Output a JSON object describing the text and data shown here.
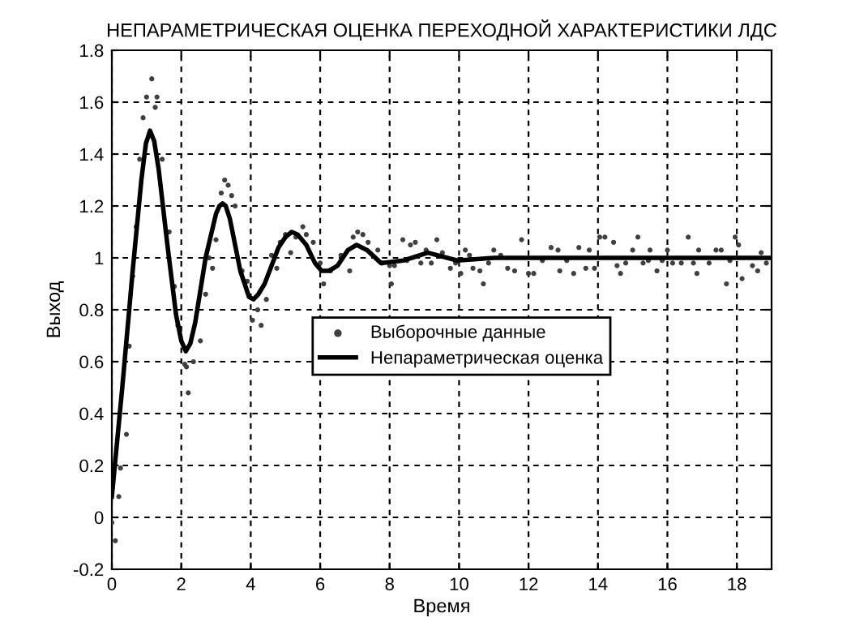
{
  "chart_data": {
    "type": "line",
    "title": "НЕПАРАМЕТРИЧЕСКАЯ ОЦЕНКА ПЕРЕХОДНОЙ ХАРАКТЕРИСТИКИ ЛДС",
    "xlabel": "Время",
    "ylabel": "Выход",
    "xlim": [
      0,
      19
    ],
    "xticks": [
      0,
      2,
      4,
      6,
      8,
      10,
      12,
      14,
      16,
      18
    ],
    "ylim": [
      -0.2,
      1.8
    ],
    "yticks": [
      -0.2,
      0,
      0.2,
      0.4,
      0.6,
      0.8,
      1,
      1.2,
      1.4,
      1.6,
      1.8
    ],
    "grid": true,
    "legend": "center",
    "series": [
      {
        "name": "Выборочные данные",
        "type": "scatter",
        "color": "#404040",
        "marker": "circle",
        "x": [
          0.0,
          0.1,
          0.2,
          0.25,
          0.42,
          0.5,
          0.6,
          0.7,
          0.8,
          0.9,
          1.0,
          1.15,
          1.25,
          1.3,
          1.45,
          1.65,
          1.8,
          1.9,
          2.1,
          2.15,
          2.2,
          2.35,
          2.55,
          2.7,
          2.8,
          2.9,
          3.0,
          3.15,
          3.25,
          3.35,
          3.45,
          3.55,
          3.75,
          3.9,
          4.05,
          4.2,
          4.3,
          4.45,
          4.6,
          4.75,
          4.85,
          5.0,
          5.15,
          5.3,
          5.5,
          5.6,
          5.8,
          6.0,
          6.1,
          6.3,
          6.6,
          6.85,
          6.95,
          7.08,
          7.23,
          7.38,
          7.66,
          7.78,
          8.0,
          8.05,
          8.14,
          8.38,
          8.5,
          8.6,
          8.74,
          8.9,
          9.05,
          9.2,
          9.36,
          9.52,
          9.75,
          9.9,
          10.05,
          10.18,
          10.3,
          10.4,
          10.6,
          10.7,
          10.85,
          11.0,
          11.2,
          11.4,
          11.6,
          11.8,
          12.0,
          12.15,
          12.4,
          12.65,
          12.85,
          12.9,
          13.1,
          13.3,
          13.45,
          13.65,
          13.75,
          13.9,
          14.05,
          14.2,
          14.45,
          14.55,
          14.65,
          14.8,
          15.0,
          15.15,
          15.3,
          15.45,
          15.5,
          15.7,
          15.85,
          16.0,
          16.15,
          16.4,
          16.6,
          16.75,
          16.85,
          16.9,
          17.2,
          17.4,
          17.55,
          17.7,
          17.8,
          17.95,
          18.05,
          18.15,
          18.45,
          18.6,
          18.7,
          18.85
        ],
        "values": [
          -0.02,
          -0.09,
          0.08,
          0.19,
          0.32,
          0.66,
          0.93,
          1.12,
          1.38,
          1.54,
          1.62,
          1.69,
          1.58,
          1.62,
          1.38,
          1.1,
          0.89,
          0.74,
          0.59,
          0.58,
          0.48,
          0.6,
          0.68,
          0.86,
          1.0,
          0.96,
          1.07,
          1.25,
          1.3,
          1.28,
          1.24,
          1.2,
          0.95,
          0.91,
          0.76,
          0.8,
          0.74,
          0.84,
          1.01,
          0.96,
          1.06,
          1.09,
          1.02,
          1.08,
          1.12,
          1.09,
          1.06,
          0.98,
          0.9,
          0.95,
          1.01,
          0.95,
          1.08,
          1.1,
          1.09,
          1.06,
          1.03,
          0.98,
          0.97,
          0.9,
          0.97,
          1.07,
          0.99,
          1.05,
          1.06,
          0.98,
          1.03,
          0.98,
          1.07,
          1.02,
          0.96,
          0.98,
          0.94,
          1.03,
          1.01,
          0.96,
          0.95,
          0.9,
          0.98,
          1.03,
          1.01,
          0.96,
          0.95,
          1.07,
          0.94,
          0.94,
          0.99,
          1.04,
          1.03,
          0.95,
          0.99,
          0.94,
          1.04,
          0.96,
          1.03,
          0.96,
          1.08,
          1.08,
          1.06,
          0.97,
          0.94,
          0.98,
          1.03,
          1.08,
          0.98,
          0.99,
          1.03,
          0.95,
          0.99,
          1.03,
          0.98,
          0.98,
          1.08,
          0.98,
          0.94,
          1.03,
          0.98,
          1.03,
          1.03,
          0.9,
          0.99,
          1.08,
          1.05,
          0.92,
          0.97,
          0.95,
          1.02,
          0.98
        ]
      },
      {
        "name": "Непараметрическая оценка",
        "color": "#000000",
        "marker": "none",
        "line_style": "solid",
        "x": [
          0.0,
          0.3,
          0.6,
          0.85,
          0.98,
          1.1,
          1.22,
          1.35,
          1.6,
          1.85,
          2.0,
          2.13,
          2.26,
          2.4,
          2.7,
          3.0,
          3.1,
          3.19,
          3.28,
          3.4,
          3.7,
          3.95,
          4.08,
          4.22,
          4.4,
          4.8,
          5.0,
          5.18,
          5.35,
          5.6,
          5.85,
          6.04,
          6.25,
          6.5,
          6.8,
          7.05,
          7.35,
          7.75,
          8.4,
          9.1,
          9.95,
          11.0,
          12.0,
          13.0,
          14.0,
          15.0,
          16.0,
          17.0,
          18.0,
          19.0
        ],
        "values": [
          0.08,
          0.5,
          0.95,
          1.3,
          1.44,
          1.49,
          1.45,
          1.34,
          1.05,
          0.78,
          0.68,
          0.64,
          0.67,
          0.75,
          1.0,
          1.17,
          1.2,
          1.21,
          1.2,
          1.15,
          0.95,
          0.85,
          0.84,
          0.86,
          0.9,
          1.04,
          1.08,
          1.1,
          1.09,
          1.05,
          0.98,
          0.95,
          0.95,
          0.97,
          1.03,
          1.05,
          1.03,
          0.98,
          0.99,
          1.02,
          0.99,
          1.0,
          1.0,
          1.0,
          1.0,
          1.0,
          1.0,
          1.0,
          1.0,
          1.0
        ]
      }
    ]
  }
}
